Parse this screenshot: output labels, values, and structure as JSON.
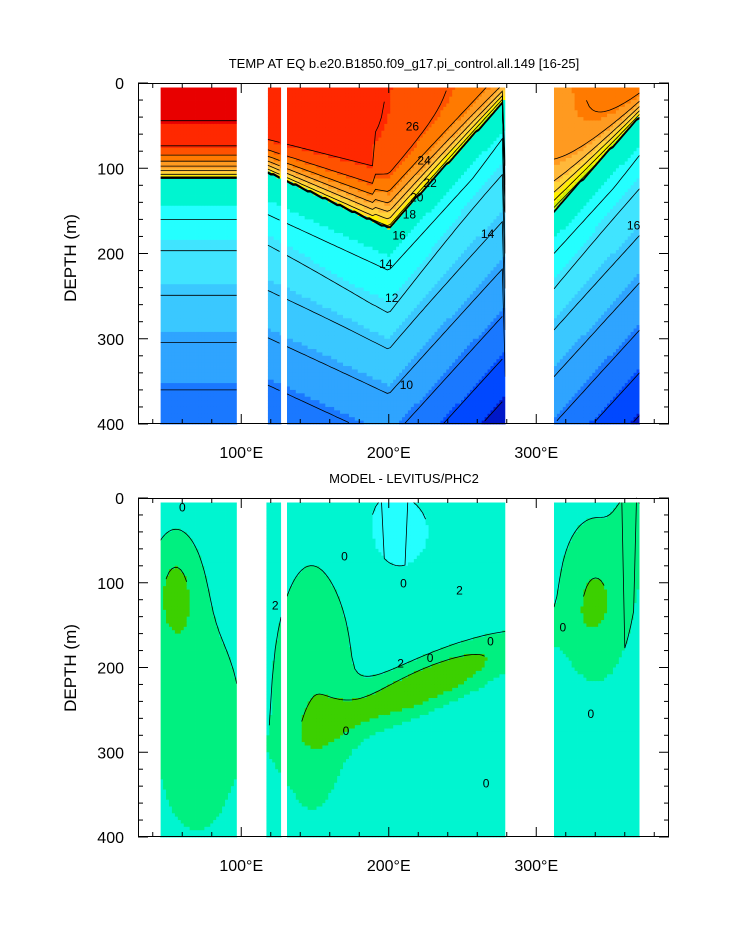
{
  "chart_data": [
    {
      "type": "heatmap",
      "title": "TEMP AT EQ b.e20.B1850.f09_g17.pi_control.all.149 [16-25]",
      "ylabel": "DEPTH (m)",
      "xlabel": "",
      "xlim": [
        30,
        390
      ],
      "ylim": [
        400,
        0
      ],
      "y_inverted": true,
      "x_ticks": [
        100,
        200,
        300
      ],
      "x_tick_labels": [
        "100°E",
        "200°E",
        "300°E"
      ],
      "y_ticks": [
        0,
        100,
        200,
        300,
        400
      ],
      "y_tick_labels": [
        "0",
        "100",
        "200",
        "300",
        "400"
      ],
      "ocean_segments": [
        [
          45,
          97
        ],
        [
          118,
          127
        ],
        [
          131,
          279
        ],
        [
          312,
          370
        ]
      ],
      "land_segments": [
        [
          97,
          118
        ],
        [
          127,
          131
        ],
        [
          279,
          312
        ]
      ],
      "contour_interval": 1,
      "contour_labels": [
        {
          "text": "26",
          "x": 216,
          "y": 52
        },
        {
          "text": "24",
          "x": 224,
          "y": 92
        },
        {
          "text": "22",
          "x": 228,
          "y": 118
        },
        {
          "text": "20",
          "x": 219,
          "y": 135
        },
        {
          "text": "18",
          "x": 214,
          "y": 155
        },
        {
          "text": "16",
          "x": 207,
          "y": 180
        },
        {
          "text": "14",
          "x": 198,
          "y": 213
        },
        {
          "text": "12",
          "x": 202,
          "y": 253
        },
        {
          "text": "10",
          "x": 212,
          "y": 355
        },
        {
          "text": "14",
          "x": 267,
          "y": 178
        },
        {
          "text": "16",
          "x": 366,
          "y": 168
        }
      ],
      "colors": [
        "#0018c8",
        "#0048ff",
        "#1a78ff",
        "#2fa4ff",
        "#3ac8ff",
        "#40e4ff",
        "#24ffff",
        "#00f5d0",
        "#00f080",
        "#00e040",
        "#3cd000",
        "#8ae000",
        "#ccef00",
        "#fff000",
        "#ffd53a",
        "#ffb83a",
        "#ff9a20",
        "#ff7a00",
        "#ff5200",
        "#ff2800",
        "#e80000"
      ]
    },
    {
      "type": "heatmap",
      "title": "MODEL - LEVITUS/PHC2",
      "ylabel": "DEPTH (m)",
      "xlabel": "",
      "xlim": [
        30,
        390
      ],
      "ylim": [
        400,
        0
      ],
      "y_inverted": true,
      "x_ticks": [
        100,
        200,
        300
      ],
      "x_tick_labels": [
        "100°E",
        "200°E",
        "300°E"
      ],
      "y_ticks": [
        0,
        100,
        200,
        300,
        400
      ],
      "y_tick_labels": [
        "0",
        "100",
        "200",
        "300",
        "400"
      ],
      "ocean_segments": [
        [
          45,
          97
        ],
        [
          117,
          127
        ],
        [
          131,
          279
        ],
        [
          312,
          370
        ]
      ],
      "land_segments": [
        [
          97,
          117
        ],
        [
          127,
          131
        ],
        [
          279,
          312
        ]
      ],
      "contour_interval": 1,
      "contour_labels": [
        {
          "text": "0",
          "x": 60,
          "y": 12
        },
        {
          "text": "0",
          "x": 170,
          "y": 70
        },
        {
          "text": "0",
          "x": 210,
          "y": 102
        },
        {
          "text": "2",
          "x": 248,
          "y": 110
        },
        {
          "text": "2",
          "x": 123,
          "y": 128
        },
        {
          "text": "2",
          "x": 208,
          "y": 196
        },
        {
          "text": "0",
          "x": 228,
          "y": 190
        },
        {
          "text": "0",
          "x": 269,
          "y": 170
        },
        {
          "text": "0",
          "x": 171,
          "y": 276
        },
        {
          "text": "0",
          "x": 266,
          "y": 338
        },
        {
          "text": "0",
          "x": 318,
          "y": 154
        },
        {
          "text": "0",
          "x": 337,
          "y": 256
        }
      ],
      "colors": [
        "#24ffff",
        "#00f5d0",
        "#00f080",
        "#3cd000",
        "#8ae000",
        "#ccef00"
      ]
    }
  ]
}
